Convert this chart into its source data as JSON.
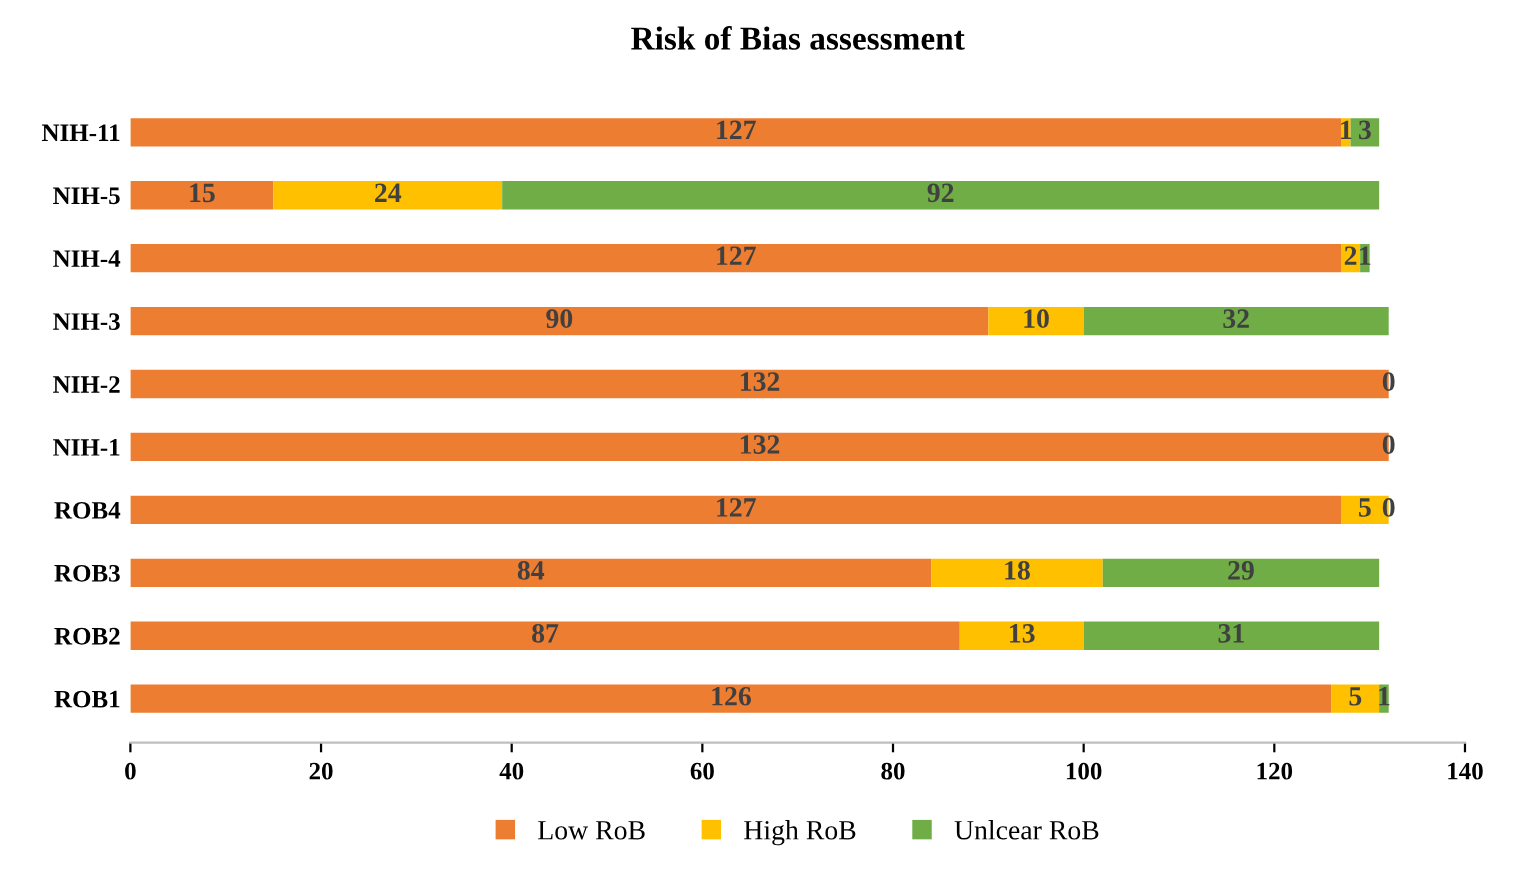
{
  "chart_data": {
    "type": "bar",
    "title": "Risk of Bias assessment",
    "orientation": "horizontal",
    "stacked": true,
    "categories": [
      "NIH-11",
      "NIH-5",
      "NIH-4",
      "NIH-3",
      "NIH-2",
      "NIH-1",
      "ROB4",
      "ROB3",
      "ROB2",
      "ROB1"
    ],
    "series": [
      {
        "name": "Low RoB",
        "color": "#ed7d31",
        "values": [
          127,
          15,
          127,
          90,
          132,
          132,
          127,
          84,
          87,
          126
        ],
        "value_labels": [
          "127",
          "15",
          "127",
          "90",
          "132",
          "132",
          "127",
          "84",
          "87",
          "126"
        ]
      },
      {
        "name": "High RoB",
        "color": "#ffc000",
        "values": [
          1,
          24,
          2,
          10,
          0,
          0,
          5,
          18,
          13,
          5
        ],
        "value_labels": [
          "1",
          "24",
          "2",
          "10",
          null,
          null,
          "5",
          "18",
          "13",
          "5"
        ]
      },
      {
        "name": "Unlcear RoB",
        "color": "#70ad47",
        "values": [
          3,
          92,
          1,
          32,
          0,
          0,
          0,
          29,
          31,
          1
        ],
        "value_labels": [
          "3",
          "92",
          "1",
          "32",
          "0",
          "0",
          "0",
          "29",
          "31",
          "1"
        ]
      }
    ],
    "xlim": [
      0,
      140
    ],
    "xticks": [
      0,
      20,
      40,
      60,
      80,
      100,
      120,
      140
    ],
    "grid": false,
    "legend": "bottom"
  }
}
